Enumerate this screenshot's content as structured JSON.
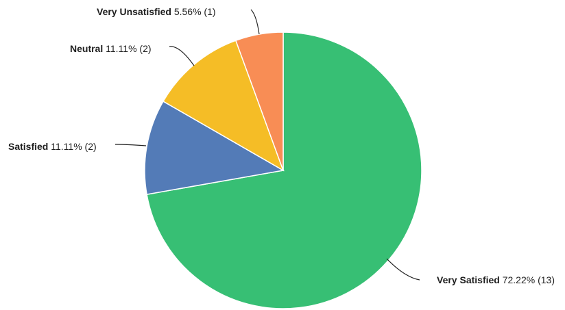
{
  "chart_data": {
    "type": "pie",
    "title": "",
    "start_angle_deg": 0,
    "direction": "clockwise",
    "slices": [
      {
        "name": "Very Satisfied",
        "percent": 72.22,
        "count": 13,
        "percent_text": "72.22%",
        "count_text": "(13)",
        "color": "#37bf74"
      },
      {
        "name": "Satisfied",
        "percent": 11.11,
        "count": 2,
        "percent_text": "11.11%",
        "count_text": "(2)",
        "color": "#537bb7"
      },
      {
        "name": "Neutral",
        "percent": 11.11,
        "count": 2,
        "percent_text": "11.11%",
        "count_text": "(2)",
        "color": "#f5bd26"
      },
      {
        "name": "Very Unsatisfied",
        "percent": 5.56,
        "count": 1,
        "percent_text": "5.56%",
        "count_text": "(1)",
        "color": "#f88d55"
      }
    ]
  }
}
